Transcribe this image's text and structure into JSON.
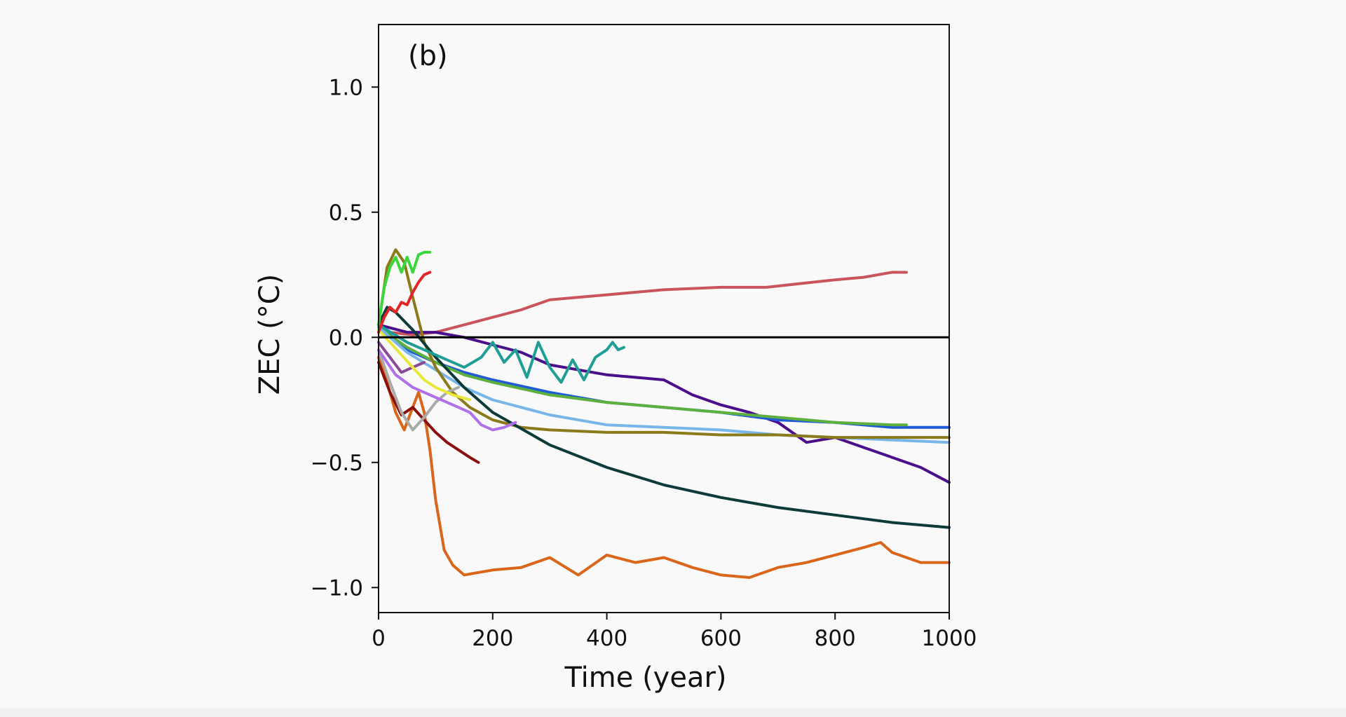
{
  "chart_data": {
    "type": "line",
    "panel_label": "(b)",
    "xlabel": "Time (year)",
    "ylabel": "ZEC (°C)",
    "xlim": [
      0,
      1000
    ],
    "ylim": [
      -1.1,
      1.25
    ],
    "xticks": [
      0,
      200,
      400,
      600,
      800,
      1000
    ],
    "xtick_labels": [
      "0",
      "200",
      "400",
      "600",
      "800",
      "1000"
    ],
    "yticks": [
      1.0,
      0.5,
      0.0,
      -0.5,
      -1.0
    ],
    "ytick_labels": [
      "1.0",
      "0.5",
      "0.0",
      "−0.5",
      "−1.0"
    ],
    "grid": false,
    "reference_line": {
      "y": 0,
      "color": "#000000"
    },
    "series": [
      {
        "color": "#c9545c",
        "x": [
          0,
          20,
          60,
          100,
          150,
          200,
          250,
          300,
          400,
          500,
          600,
          680,
          760,
          800,
          850,
          900,
          925
        ],
        "y": [
          0.05,
          0.02,
          0.01,
          0.02,
          0.05,
          0.08,
          0.11,
          0.15,
          0.17,
          0.19,
          0.2,
          0.2,
          0.22,
          0.23,
          0.24,
          0.26,
          0.26
        ]
      },
      {
        "color": "#4b0f8c",
        "x": [
          0,
          50,
          100,
          150,
          200,
          250,
          300,
          350,
          400,
          450,
          500,
          550,
          600,
          650,
          700,
          750,
          800,
          850,
          900,
          950,
          1000
        ],
        "y": [
          0.05,
          0.02,
          0.02,
          0.0,
          -0.03,
          -0.06,
          -0.11,
          -0.13,
          -0.15,
          -0.16,
          -0.17,
          -0.23,
          -0.27,
          -0.3,
          -0.34,
          -0.42,
          -0.4,
          -0.44,
          -0.48,
          -0.52,
          -0.58
        ]
      },
      {
        "color": "#1f5ad8",
        "x": [
          0,
          50,
          100,
          150,
          200,
          300,
          400,
          500,
          600,
          700,
          800,
          900,
          1000
        ],
        "y": [
          0.05,
          -0.05,
          -0.1,
          -0.14,
          -0.17,
          -0.22,
          -0.26,
          -0.28,
          -0.3,
          -0.33,
          -0.34,
          -0.36,
          -0.36
        ]
      },
      {
        "color": "#5daf3e",
        "x": [
          0,
          50,
          100,
          150,
          200,
          300,
          400,
          500,
          600,
          700,
          800,
          900,
          925
        ],
        "y": [
          0.04,
          -0.04,
          -0.1,
          -0.15,
          -0.18,
          -0.23,
          -0.26,
          -0.28,
          -0.3,
          -0.32,
          -0.34,
          -0.35,
          -0.35
        ]
      },
      {
        "color": "#78b6ea",
        "x": [
          0,
          50,
          100,
          150,
          200,
          250,
          300,
          400,
          500,
          600,
          700,
          800,
          900,
          1000
        ],
        "y": [
          0.04,
          -0.06,
          -0.13,
          -0.2,
          -0.25,
          -0.28,
          -0.31,
          -0.35,
          -0.36,
          -0.37,
          -0.39,
          -0.4,
          -0.41,
          -0.42
        ]
      },
      {
        "color": "#8b7a1a",
        "x": [
          0,
          15,
          30,
          45,
          60,
          80,
          100,
          130,
          160,
          200,
          250,
          300,
          400,
          500,
          600,
          700,
          800,
          900,
          1000
        ],
        "y": [
          0.05,
          0.28,
          0.35,
          0.3,
          0.16,
          -0.02,
          -0.12,
          -0.22,
          -0.28,
          -0.33,
          -0.36,
          -0.37,
          -0.38,
          -0.38,
          -0.39,
          -0.39,
          -0.4,
          -0.4,
          -0.4
        ]
      },
      {
        "color": "#0e3b3a",
        "x": [
          0,
          15,
          30,
          60,
          100,
          150,
          200,
          300,
          400,
          500,
          600,
          700,
          800,
          900,
          1000
        ],
        "y": [
          0.05,
          0.12,
          0.1,
          0.03,
          -0.08,
          -0.2,
          -0.3,
          -0.43,
          -0.52,
          -0.59,
          -0.64,
          -0.68,
          -0.71,
          -0.74,
          -0.76
        ]
      },
      {
        "color": "#1f9e96",
        "x": [
          0,
          50,
          100,
          150,
          180,
          200,
          220,
          240,
          260,
          280,
          300,
          320,
          340,
          360,
          380,
          400,
          410,
          420,
          430
        ],
        "y": [
          0.05,
          -0.02,
          -0.07,
          -0.12,
          -0.08,
          -0.02,
          -0.1,
          -0.05,
          -0.16,
          -0.02,
          -0.12,
          -0.18,
          -0.09,
          -0.17,
          -0.08,
          -0.05,
          -0.02,
          -0.05,
          -0.04
        ]
      },
      {
        "color": "#d9661a",
        "x": [
          0,
          15,
          30,
          45,
          60,
          70,
          80,
          90,
          100,
          115,
          130,
          150,
          200,
          250,
          300,
          350,
          400,
          450,
          500,
          550,
          600,
          650,
          700,
          750,
          800,
          850,
          880,
          900,
          950,
          1000
        ],
        "y": [
          -0.08,
          -0.18,
          -0.3,
          -0.37,
          -0.28,
          -0.22,
          -0.3,
          -0.45,
          -0.65,
          -0.85,
          -0.91,
          -0.95,
          -0.93,
          -0.92,
          -0.88,
          -0.95,
          -0.87,
          -0.9,
          -0.88,
          -0.92,
          -0.95,
          -0.96,
          -0.92,
          -0.9,
          -0.87,
          -0.84,
          -0.82,
          -0.86,
          -0.9,
          -0.9
        ]
      },
      {
        "color": "#8b1010",
        "x": [
          0,
          20,
          40,
          60,
          80,
          100,
          120,
          140,
          160,
          175
        ],
        "y": [
          -0.1,
          -0.22,
          -0.31,
          -0.28,
          -0.33,
          -0.38,
          -0.42,
          -0.45,
          -0.48,
          -0.5
        ]
      },
      {
        "color": "#aaaaaa",
        "x": [
          0,
          20,
          40,
          60,
          80,
          100,
          120,
          140
        ],
        "y": [
          -0.05,
          -0.18,
          -0.3,
          -0.37,
          -0.32,
          -0.26,
          -0.22,
          -0.2
        ]
      },
      {
        "color": "#b070e8",
        "x": [
          0,
          30,
          60,
          80,
          100,
          120,
          140,
          160,
          180,
          200,
          220,
          240
        ],
        "y": [
          -0.05,
          -0.15,
          -0.2,
          -0.22,
          -0.24,
          -0.26,
          -0.28,
          -0.3,
          -0.35,
          -0.37,
          -0.36,
          -0.34
        ]
      },
      {
        "color": "#8a4a9a",
        "x": [
          0,
          20,
          40,
          60,
          80
        ],
        "y": [
          -0.02,
          -0.08,
          -0.14,
          -0.12,
          -0.1
        ]
      },
      {
        "color": "#e8e83a",
        "x": [
          0,
          20,
          40,
          60,
          80,
          100,
          130,
          160
        ],
        "y": [
          0.03,
          -0.02,
          -0.07,
          -0.12,
          -0.17,
          -0.2,
          -0.23,
          -0.25
        ]
      },
      {
        "color": "#3bd63b",
        "x": [
          0,
          10,
          20,
          30,
          40,
          50,
          60,
          70,
          80,
          90
        ],
        "y": [
          0.05,
          0.2,
          0.28,
          0.32,
          0.26,
          0.32,
          0.26,
          0.33,
          0.34,
          0.34
        ]
      },
      {
        "color": "#e02626",
        "x": [
          0,
          10,
          20,
          30,
          40,
          50,
          60,
          70,
          80,
          90
        ],
        "y": [
          0.02,
          0.08,
          0.12,
          0.1,
          0.14,
          0.13,
          0.18,
          0.22,
          0.25,
          0.26
        ]
      }
    ]
  }
}
